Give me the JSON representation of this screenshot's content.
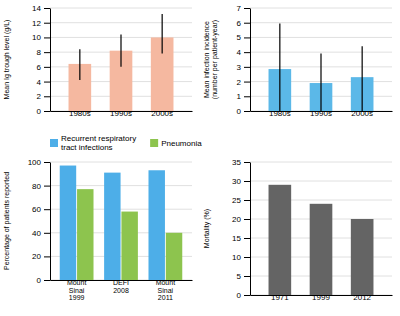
{
  "chart_data": [
    {
      "type": "bar",
      "categories": [
        "1980s",
        "1990s",
        "2000s"
      ],
      "values": [
        6.4,
        8.2,
        10.0
      ],
      "error_low": [
        2.2,
        2.2,
        2.2
      ],
      "error_high": [
        2.0,
        2.2,
        3.2
      ],
      "color": "#F5B8A0",
      "ylabel": "Mean Ig trough level (g/L)",
      "ylim": [
        0,
        14
      ],
      "yticks": [
        0,
        2,
        4,
        6,
        8,
        10,
        12,
        14
      ],
      "grid": true
    },
    {
      "type": "bar",
      "categories": [
        "1980s",
        "1990s",
        "2000s"
      ],
      "values": [
        2.85,
        1.9,
        2.3
      ],
      "error_low": [
        2.85,
        1.9,
        2.3
      ],
      "error_high": [
        3.1,
        2.0,
        2.1
      ],
      "color": "#5BB8E8",
      "ylabel": "Mean infection incidence\n(number per patient-year)",
      "ylim": [
        0,
        7
      ],
      "yticks": [
        0,
        1,
        2,
        3,
        4,
        5,
        6,
        7
      ],
      "grid": true
    },
    {
      "type": "bar",
      "categories": [
        "Mount\nSinai\n1999",
        "DEFI\n2008",
        "Mount\nSinai\n2011"
      ],
      "series": [
        {
          "name": "Recurrent respiratory\ntract infections",
          "color": "#4DAEE8",
          "values": [
            97,
            91,
            93
          ]
        },
        {
          "name": "Pneumonia",
          "color": "#8DC44E",
          "values": [
            77,
            58,
            40
          ]
        }
      ],
      "ylabel": "Percentage of patients reported",
      "ylim": [
        0,
        100
      ],
      "yticks": [
        0,
        20,
        40,
        60,
        80,
        100
      ],
      "grid": true
    },
    {
      "type": "bar",
      "categories": [
        "1971",
        "1999",
        "2012"
      ],
      "values": [
        29,
        24,
        20
      ],
      "color": "#646464",
      "ylabel": "Mortality (%)",
      "ylim": [
        0,
        35
      ],
      "yticks": [
        0,
        5,
        10,
        15,
        20,
        25,
        30,
        35
      ],
      "grid": true
    }
  ]
}
